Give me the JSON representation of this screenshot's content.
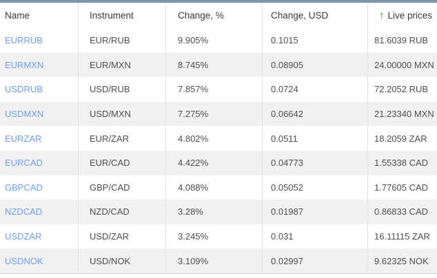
{
  "colors": {
    "top_bar": "#7e93a8",
    "link_blue": "#6d9eeb",
    "sort_arrow_green": "#1e9b12",
    "alt_row": "#f1f1f1",
    "divider": "#e1e1e1"
  },
  "icons": {
    "sort_asc": "↑"
  },
  "table": {
    "columns": [
      {
        "label": "Name"
      },
      {
        "label": "Instrument"
      },
      {
        "label": "Change, %"
      },
      {
        "label": "Change, USD"
      },
      {
        "label": "Live prices"
      }
    ],
    "rows": [
      {
        "name": "EURRUB",
        "instrument": "EUR/RUB",
        "change_pct": "9.905%",
        "change_usd": "0.1015",
        "live_price": "81.6039 RUB"
      },
      {
        "name": "EURMXN",
        "instrument": "EUR/MXN",
        "change_pct": "8.745%",
        "change_usd": "0.08905",
        "live_price": "24.00000 MXN"
      },
      {
        "name": "USDRUB",
        "instrument": "USD/RUB",
        "change_pct": "7.857%",
        "change_usd": "0.0724",
        "live_price": "72.2052 RUB"
      },
      {
        "name": "USDMXN",
        "instrument": "USD/MXN",
        "change_pct": "7.275%",
        "change_usd": "0.06642",
        "live_price": "21.23340 MXN"
      },
      {
        "name": "EURZAR",
        "instrument": "EUR/ZAR",
        "change_pct": "4.802%",
        "change_usd": "0.0511",
        "live_price": "18.2059 ZAR"
      },
      {
        "name": "EURCAD",
        "instrument": "EUR/CAD",
        "change_pct": "4.422%",
        "change_usd": "0.04773",
        "live_price": "1.55338 CAD"
      },
      {
        "name": "GBPCAD",
        "instrument": "GBP/CAD",
        "change_pct": "4.088%",
        "change_usd": "0.05052",
        "live_price": "1.77605 CAD"
      },
      {
        "name": "NZDCAD",
        "instrument": "NZD/CAD",
        "change_pct": "3.28%",
        "change_usd": "0.01987",
        "live_price": "0.86833 CAD"
      },
      {
        "name": "USDZAR",
        "instrument": "USD/ZAR",
        "change_pct": "3.245%",
        "change_usd": "0.031",
        "live_price": "16.11115 ZAR"
      },
      {
        "name": "USDNOK",
        "instrument": "USD/NOK",
        "change_pct": "3.109%",
        "change_usd": "0.02997",
        "live_price": "9.62325 NOK"
      }
    ]
  }
}
